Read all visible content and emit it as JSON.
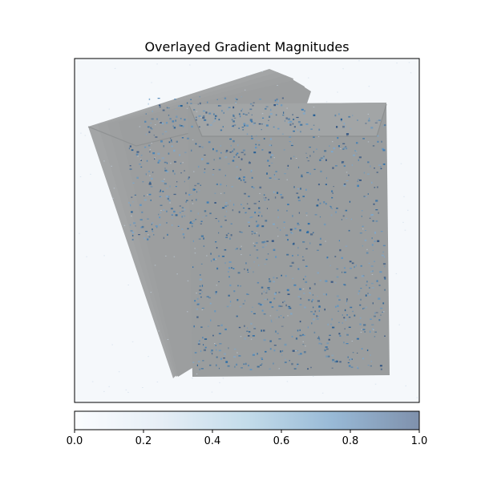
{
  "chart_data": {
    "type": "heatmap",
    "title": "Overlayed Gradient Magnitudes",
    "image_content": "stack of manila envelopes",
    "colormap": "Blues",
    "overlay_alpha": 0.5,
    "colorbar": {
      "orientation": "horizontal",
      "placement": "bottom",
      "range": [
        0.0,
        1.0
      ],
      "ticks": [
        0.0,
        0.2,
        0.4,
        0.6,
        0.8,
        1.0
      ],
      "tick_labels": [
        "0.0",
        "0.2",
        "0.4",
        "0.6",
        "0.8",
        "1.0"
      ]
    },
    "axes": {
      "x_ticks_visible": false,
      "y_ticks_visible": false
    },
    "colors": {
      "envelope": "#9b9e9f",
      "envelope_back": "#a2a4a5",
      "background": "#f5f8fb",
      "gradient_low": "#f7fbff",
      "gradient_mid": "#9ecae1",
      "gradient_high": "#08306b"
    }
  }
}
